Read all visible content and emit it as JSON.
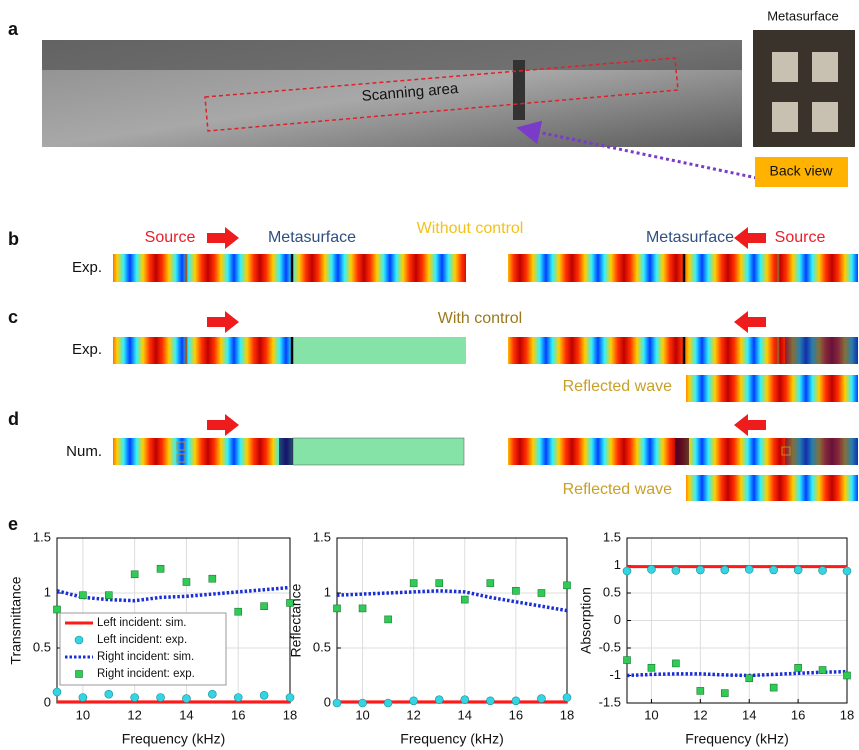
{
  "panel_labels": [
    "a",
    "b",
    "c",
    "d",
    "e"
  ],
  "photo": {
    "scan_label": "Scanning area",
    "inset_title": "Metasurface",
    "callout": "Back view"
  },
  "panel_b": {
    "source_left": "Source",
    "metasurface_left": "Metasurface",
    "condition": "Without control",
    "metasurface_right": "Metasurface",
    "source_right": "Source",
    "row_label": "Exp."
  },
  "panel_c": {
    "condition": "With control",
    "row_label": "Exp.",
    "reflected": "Reflected wave"
  },
  "panel_d": {
    "row_label": "Num.",
    "reflected": "Reflected wave"
  },
  "chart_data": [
    {
      "type": "line",
      "ylabel": "Transmittance",
      "xlabel": "Frequency (kHz)",
      "x": [
        9,
        10,
        11,
        12,
        13,
        14,
        15,
        16,
        17,
        18
      ],
      "xlim": [
        9,
        18
      ],
      "xticks": [
        10,
        12,
        14,
        16,
        18
      ],
      "ylim": [
        0,
        1.5
      ],
      "yticks": [
        0,
        0.5,
        1,
        1.5
      ],
      "grid": true,
      "legend": "lower left",
      "series": [
        {
          "name": "Left incident: sim.",
          "color": "#ff1a1a",
          "style": "solid",
          "values": [
            0.01,
            0.01,
            0.01,
            0.01,
            0.01,
            0.01,
            0.01,
            0.01,
            0.01,
            0.01
          ]
        },
        {
          "name": "Left incident: exp.",
          "color": "#33d6e0",
          "style": "circle",
          "values": [
            0.1,
            0.05,
            0.08,
            0.05,
            0.05,
            0.04,
            0.08,
            0.05,
            0.07,
            0.05
          ]
        },
        {
          "name": "Right incident: sim.",
          "color": "#1a2ed6",
          "style": "dotted",
          "values": [
            1.02,
            0.96,
            0.94,
            0.93,
            0.96,
            0.97,
            0.99,
            1.01,
            1.03,
            1.05
          ]
        },
        {
          "name": "Right incident: exp.",
          "color": "#2ecc55",
          "style": "square",
          "values": [
            0.85,
            0.98,
            0.98,
            1.17,
            1.22,
            1.1,
            1.13,
            0.83,
            0.88,
            0.91
          ]
        }
      ]
    },
    {
      "type": "line",
      "ylabel": "Reflectance",
      "xlabel": "Frequency (kHz)",
      "x": [
        9,
        10,
        11,
        12,
        13,
        14,
        15,
        16,
        17,
        18
      ],
      "xlim": [
        9,
        18
      ],
      "xticks": [
        10,
        12,
        14,
        16,
        18
      ],
      "ylim": [
        0,
        1.5
      ],
      "yticks": [
        0,
        0.5,
        1,
        1.5
      ],
      "grid": true,
      "series": [
        {
          "color": "#ff1a1a",
          "style": "solid",
          "values": [
            0.01,
            0.01,
            0.01,
            0.01,
            0.01,
            0.01,
            0.01,
            0.01,
            0.01,
            0.01
          ]
        },
        {
          "color": "#33d6e0",
          "style": "circle",
          "values": [
            0,
            0,
            0,
            0.02,
            0.03,
            0.03,
            0.02,
            0.02,
            0.04,
            0.05
          ]
        },
        {
          "color": "#1a2ed6",
          "style": "dotted",
          "values": [
            0.98,
            0.99,
            1.0,
            1.01,
            1.02,
            1.01,
            0.96,
            0.92,
            0.88,
            0.84
          ]
        },
        {
          "color": "#2ecc55",
          "style": "square",
          "values": [
            0.86,
            0.86,
            0.76,
            1.09,
            1.09,
            0.94,
            1.09,
            1.02,
            1.0,
            1.07
          ]
        }
      ]
    },
    {
      "type": "line",
      "ylabel": "Absorption",
      "xlabel": "Frequency (kHz)",
      "x": [
        9,
        10,
        11,
        12,
        13,
        14,
        15,
        16,
        17,
        18
      ],
      "xlim": [
        9,
        18
      ],
      "xticks": [
        10,
        12,
        14,
        16,
        18
      ],
      "ylim": [
        -1.5,
        1.5
      ],
      "yticks": [
        -1.5,
        -1,
        -0.5,
        0,
        0.5,
        1,
        1.5
      ],
      "grid": true,
      "series": [
        {
          "color": "#ff1a1a",
          "style": "solid",
          "values": [
            0.98,
            0.98,
            0.98,
            0.98,
            0.98,
            0.98,
            0.98,
            0.98,
            0.98,
            0.98
          ]
        },
        {
          "color": "#33d6e0",
          "style": "circle",
          "values": [
            0.9,
            0.93,
            0.91,
            0.92,
            0.92,
            0.93,
            0.92,
            0.92,
            0.91,
            0.9
          ]
        },
        {
          "color": "#1a2ed6",
          "style": "dotted",
          "values": [
            -1.0,
            -0.98,
            -0.97,
            -0.97,
            -0.99,
            -1.0,
            -0.98,
            -0.96,
            -0.94,
            -0.93
          ]
        },
        {
          "color": "#2ecc55",
          "style": "square",
          "values": [
            -0.72,
            -0.86,
            -0.78,
            -1.28,
            -1.32,
            -1.05,
            -1.22,
            -0.86,
            -0.9,
            -1.0
          ]
        }
      ]
    }
  ]
}
